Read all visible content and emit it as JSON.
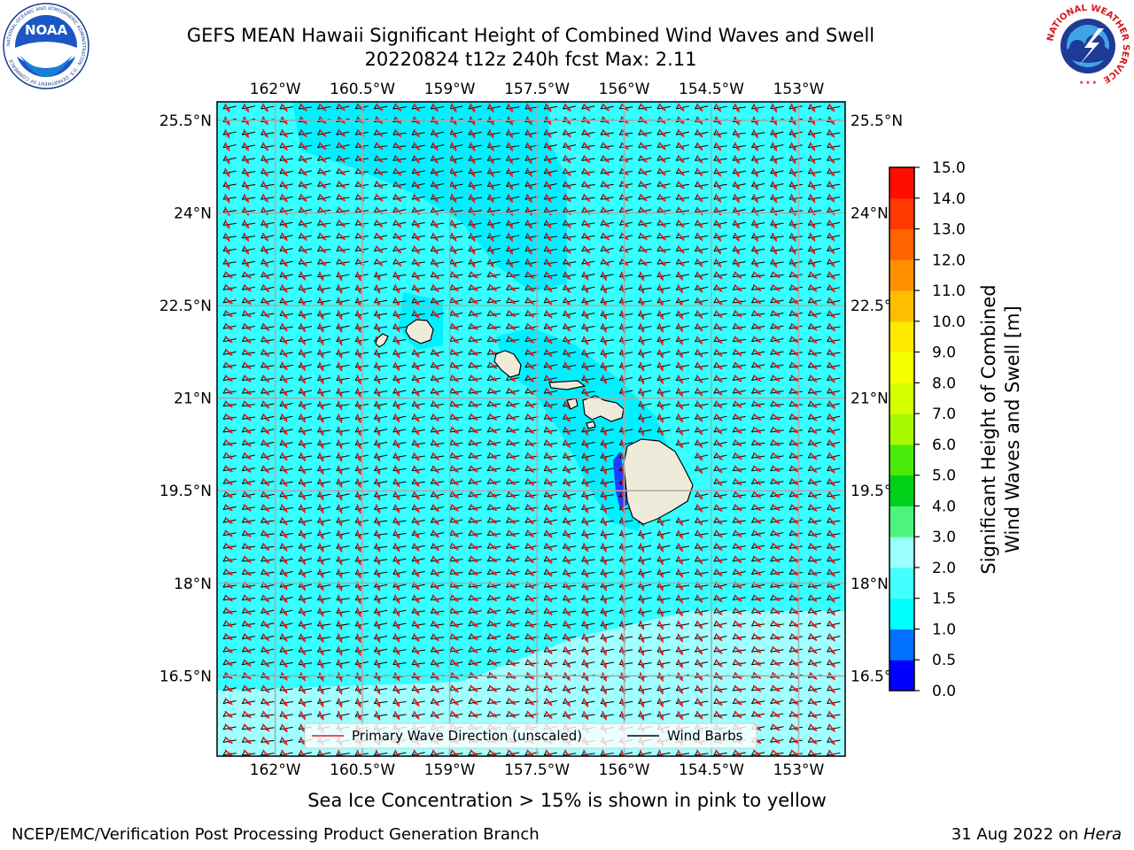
{
  "title": {
    "line1": "GEFS MEAN Hawaii Significant Height of Combined Wind Waves and Swell",
    "line2": "20220824 t12z 240h fcst   Max: 2.11"
  },
  "map": {
    "lon_ticks": [
      "162°W",
      "160.5°W",
      "159°W",
      "157.5°W",
      "156°W",
      "154.5°W",
      "153°W"
    ],
    "lat_ticks": [
      "25.5°N",
      "24°N",
      "22.5°N",
      "21°N",
      "19.5°N",
      "18°N",
      "16.5°N"
    ],
    "lon_range": [
      -163,
      -152.2
    ],
    "lat_range": [
      15.2,
      25.8
    ],
    "colors": {
      "sea_base": "#36ffff",
      "sea_calm": "#00f0ff",
      "sea_high": "#a0ffff",
      "land": "#efebda",
      "grid": "#a9a9a9",
      "wave_arrow": "#e31c1c",
      "wind_barb": "#000000"
    }
  },
  "legend": {
    "wave_label": "Primary Wave Direction (unscaled)",
    "barb_label": "Wind Barbs"
  },
  "colorbar": {
    "title_line1": "Significant Height of Combined",
    "title_line2": "Wind Waves and Swell [m]",
    "levels": [
      "0.0",
      "0.5",
      "1.0",
      "1.5",
      "2.0",
      "3.0",
      "4.0",
      "5.0",
      "6.0",
      "7.0",
      "8.0",
      "9.0",
      "10.0",
      "11.0",
      "12.0",
      "13.0",
      "14.0",
      "15.0"
    ],
    "colors": [
      "#0000ff",
      "#0070ff",
      "#00ffff",
      "#44ffff",
      "#99ffff",
      "#4cf37d",
      "#00d21a",
      "#49ea0b",
      "#a8f800",
      "#d6ff00",
      "#f5ff00",
      "#ffe800",
      "#ffbd00",
      "#ff9100",
      "#ff6400",
      "#ff3900",
      "#ff0e00"
    ]
  },
  "caption": "Sea Ice Concentration > 15% is shown in pink to yellow",
  "footer": {
    "left": "NCEP/EMC/Verification Post Processing Product Generation Branch",
    "right_date": "31 Aug 2022 on ",
    "right_host": "Hera"
  },
  "logos": {
    "noaa_text": "NOAA",
    "noaa_ring_text": "NATIONAL OCEANIC AND ATMOSPHERIC ADMINISTRATION · U.S. DEPARTMENT OF COMMERCE",
    "nws_ring_text": "NATIONAL WEATHER SERVICE"
  }
}
